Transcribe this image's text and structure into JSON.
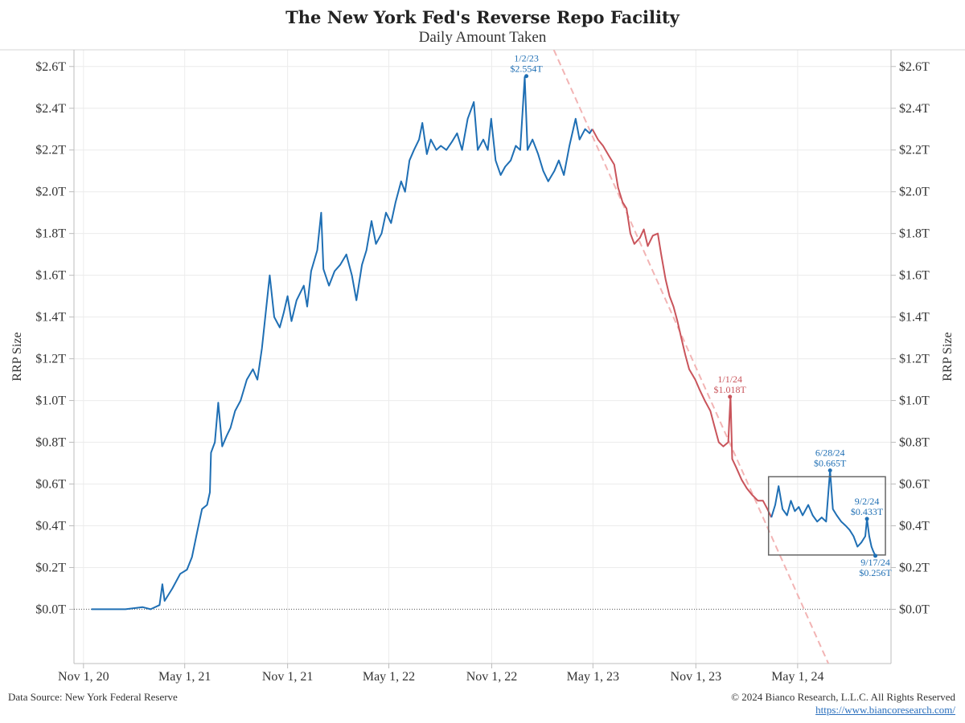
{
  "header": {
    "title": "The New York Fed's Reverse Repo Facility",
    "subtitle": "Daily Amount Taken"
  },
  "footer": {
    "source": "Data Source: New York Federal Reserve",
    "copyright": "© 2024 Bianco Research, L.L.C. All Rights Reserved",
    "link": "https://www.biancoresearch.com/"
  },
  "colors": {
    "primary_series": "#1f6fb4",
    "decline_series": "#c9545b",
    "trend_line": "#f2b4b4",
    "box": "#666666",
    "grid": "#ececec"
  },
  "chart_data": {
    "type": "line",
    "ylabel": "RRP Size",
    "ylabel_right": "RRP Size",
    "ylim": [
      -0.26,
      2.68
    ],
    "xlim": [
      "2020-10-15",
      "2024-10-15"
    ],
    "y_ticks": [
      0.0,
      0.2,
      0.4,
      0.6,
      0.8,
      1.0,
      1.2,
      1.4,
      1.6,
      1.8,
      2.0,
      2.2,
      2.4,
      2.6
    ],
    "y_tick_labels": [
      "$0.0T",
      "$0.2T",
      "$0.4T",
      "$0.6T",
      "$0.8T",
      "$1.0T",
      "$1.2T",
      "$1.4T",
      "$1.6T",
      "$1.8T",
      "$2.0T",
      "$2.2T",
      "$2.4T",
      "$2.6T"
    ],
    "x_ticks": [
      "2020-11-01",
      "2021-05-01",
      "2021-11-01",
      "2022-05-01",
      "2022-11-01",
      "2023-05-01",
      "2023-11-01",
      "2024-05-01"
    ],
    "x_tick_labels": [
      "Nov 1, 20",
      "May 1, 21",
      "Nov 1, 21",
      "May 1, 22",
      "Nov 1, 22",
      "May 1, 23",
      "Nov 1, 23",
      "May 1, 24"
    ],
    "grid": true,
    "zero_line": "dotted",
    "series": [
      {
        "color": "#1f6fb4",
        "points": [
          [
            "2020-11-15",
            0.0
          ],
          [
            "2020-12-15",
            0.0
          ],
          [
            "2021-01-15",
            0.0
          ],
          [
            "2021-02-15",
            0.01
          ],
          [
            "2021-03-01",
            0.0
          ],
          [
            "2021-03-17",
            0.02
          ],
          [
            "2021-03-22",
            0.12
          ],
          [
            "2021-03-26",
            0.04
          ],
          [
            "2021-04-09",
            0.1
          ],
          [
            "2021-04-23",
            0.17
          ],
          [
            "2021-05-05",
            0.19
          ],
          [
            "2021-05-14",
            0.25
          ],
          [
            "2021-05-24",
            0.38
          ],
          [
            "2021-06-01",
            0.48
          ],
          [
            "2021-06-10",
            0.5
          ],
          [
            "2021-06-15",
            0.56
          ],
          [
            "2021-06-17",
            0.75
          ],
          [
            "2021-06-24",
            0.8
          ],
          [
            "2021-06-30",
            0.99
          ],
          [
            "2021-07-07",
            0.78
          ],
          [
            "2021-07-15",
            0.83
          ],
          [
            "2021-07-22",
            0.87
          ],
          [
            "2021-07-30",
            0.95
          ],
          [
            "2021-08-09",
            1.0
          ],
          [
            "2021-08-20",
            1.1
          ],
          [
            "2021-08-31",
            1.15
          ],
          [
            "2021-09-08",
            1.1
          ],
          [
            "2021-09-16",
            1.25
          ],
          [
            "2021-09-30",
            1.6
          ],
          [
            "2021-10-08",
            1.4
          ],
          [
            "2021-10-18",
            1.35
          ],
          [
            "2021-10-25",
            1.42
          ],
          [
            "2021-11-01",
            1.5
          ],
          [
            "2021-11-08",
            1.38
          ],
          [
            "2021-11-17",
            1.48
          ],
          [
            "2021-11-30",
            1.55
          ],
          [
            "2021-12-06",
            1.45
          ],
          [
            "2021-12-13",
            1.62
          ],
          [
            "2021-12-24",
            1.72
          ],
          [
            "2021-12-31",
            1.9
          ],
          [
            "2022-01-04",
            1.63
          ],
          [
            "2022-01-14",
            1.55
          ],
          [
            "2022-01-24",
            1.62
          ],
          [
            "2022-02-03",
            1.65
          ],
          [
            "2022-02-14",
            1.7
          ],
          [
            "2022-02-24",
            1.6
          ],
          [
            "2022-03-04",
            1.48
          ],
          [
            "2022-03-14",
            1.65
          ],
          [
            "2022-03-22",
            1.72
          ],
          [
            "2022-03-31",
            1.86
          ],
          [
            "2022-04-08",
            1.75
          ],
          [
            "2022-04-18",
            1.8
          ],
          [
            "2022-04-26",
            1.9
          ],
          [
            "2022-05-05",
            1.85
          ],
          [
            "2022-05-13",
            1.95
          ],
          [
            "2022-05-23",
            2.05
          ],
          [
            "2022-05-30",
            2.0
          ],
          [
            "2022-06-07",
            2.15
          ],
          [
            "2022-06-15",
            2.2
          ],
          [
            "2022-06-24",
            2.25
          ],
          [
            "2022-06-30",
            2.33
          ],
          [
            "2022-07-08",
            2.18
          ],
          [
            "2022-07-15",
            2.25
          ],
          [
            "2022-07-25",
            2.2
          ],
          [
            "2022-08-02",
            2.22
          ],
          [
            "2022-08-12",
            2.2
          ],
          [
            "2022-08-22",
            2.24
          ],
          [
            "2022-08-31",
            2.28
          ],
          [
            "2022-09-09",
            2.2
          ],
          [
            "2022-09-19",
            2.35
          ],
          [
            "2022-09-30",
            2.43
          ],
          [
            "2022-10-07",
            2.2
          ],
          [
            "2022-10-17",
            2.25
          ],
          [
            "2022-10-25",
            2.2
          ],
          [
            "2022-10-31",
            2.35
          ],
          [
            "2022-11-08",
            2.15
          ],
          [
            "2022-11-17",
            2.08
          ],
          [
            "2022-11-25",
            2.12
          ],
          [
            "2022-12-05",
            2.15
          ],
          [
            "2022-12-14",
            2.22
          ],
          [
            "2022-12-22",
            2.2
          ],
          [
            "2022-12-30",
            2.55
          ],
          [
            "2023-01-04",
            2.2
          ],
          [
            "2023-01-13",
            2.25
          ],
          [
            "2023-01-23",
            2.18
          ],
          [
            "2023-02-01",
            2.1
          ],
          [
            "2023-02-10",
            2.05
          ],
          [
            "2023-02-21",
            2.1
          ],
          [
            "2023-03-01",
            2.15
          ],
          [
            "2023-03-10",
            2.08
          ],
          [
            "2023-03-20",
            2.22
          ],
          [
            "2023-03-31",
            2.35
          ],
          [
            "2023-04-07",
            2.25
          ],
          [
            "2023-04-17",
            2.3
          ],
          [
            "2023-04-25",
            2.28
          ],
          [
            "2023-04-30",
            2.3
          ]
        ]
      },
      {
        "color": "#c9545b",
        "points": [
          [
            "2023-04-30",
            2.3
          ],
          [
            "2023-05-10",
            2.25
          ],
          [
            "2023-05-19",
            2.22
          ],
          [
            "2023-05-30",
            2.17
          ],
          [
            "2023-06-08",
            2.13
          ],
          [
            "2023-06-15",
            2.02
          ],
          [
            "2023-06-23",
            1.95
          ],
          [
            "2023-06-30",
            1.92
          ],
          [
            "2023-07-07",
            1.8
          ],
          [
            "2023-07-14",
            1.75
          ],
          [
            "2023-07-24",
            1.78
          ],
          [
            "2023-07-31",
            1.82
          ],
          [
            "2023-08-07",
            1.74
          ],
          [
            "2023-08-16",
            1.79
          ],
          [
            "2023-08-25",
            1.8
          ],
          [
            "2023-08-31",
            1.7
          ],
          [
            "2023-09-08",
            1.58
          ],
          [
            "2023-09-15",
            1.5
          ],
          [
            "2023-09-22",
            1.45
          ],
          [
            "2023-09-29",
            1.38
          ],
          [
            "2023-10-06",
            1.3
          ],
          [
            "2023-10-13",
            1.22
          ],
          [
            "2023-10-20",
            1.15
          ],
          [
            "2023-10-31",
            1.1
          ],
          [
            "2023-11-08",
            1.05
          ],
          [
            "2023-11-17",
            1.0
          ],
          [
            "2023-11-27",
            0.95
          ],
          [
            "2023-12-04",
            0.88
          ],
          [
            "2023-12-12",
            0.8
          ],
          [
            "2023-12-20",
            0.78
          ],
          [
            "2023-12-29",
            0.8
          ],
          [
            "2024-01-02",
            1.02
          ],
          [
            "2024-01-05",
            0.72
          ],
          [
            "2024-01-12",
            0.68
          ],
          [
            "2024-01-22",
            0.62
          ],
          [
            "2024-01-31",
            0.58
          ],
          [
            "2024-02-09",
            0.55
          ],
          [
            "2024-02-20",
            0.52
          ],
          [
            "2024-02-29",
            0.52
          ],
          [
            "2024-03-08",
            0.48
          ],
          [
            "2024-03-15",
            0.44
          ]
        ]
      },
      {
        "color": "#1f6fb4",
        "points": [
          [
            "2024-03-15",
            0.44
          ],
          [
            "2024-03-22",
            0.5
          ],
          [
            "2024-03-28",
            0.59
          ],
          [
            "2024-04-04",
            0.48
          ],
          [
            "2024-04-12",
            0.45
          ],
          [
            "2024-04-19",
            0.52
          ],
          [
            "2024-04-26",
            0.47
          ],
          [
            "2024-05-03",
            0.49
          ],
          [
            "2024-05-10",
            0.45
          ],
          [
            "2024-05-20",
            0.5
          ],
          [
            "2024-05-28",
            0.45
          ],
          [
            "2024-06-05",
            0.42
          ],
          [
            "2024-06-13",
            0.44
          ],
          [
            "2024-06-21",
            0.42
          ],
          [
            "2024-06-28",
            0.665
          ],
          [
            "2024-07-03",
            0.48
          ],
          [
            "2024-07-10",
            0.45
          ],
          [
            "2024-07-18",
            0.42
          ],
          [
            "2024-07-26",
            0.4
          ],
          [
            "2024-08-02",
            0.38
          ],
          [
            "2024-08-09",
            0.35
          ],
          [
            "2024-08-16",
            0.3
          ],
          [
            "2024-08-23",
            0.32
          ],
          [
            "2024-08-30",
            0.35
          ],
          [
            "2024-09-02",
            0.433
          ],
          [
            "2024-09-06",
            0.35
          ],
          [
            "2024-09-10",
            0.3
          ],
          [
            "2024-09-13",
            0.28
          ],
          [
            "2024-09-17",
            0.256
          ]
        ]
      }
    ],
    "annotations": [
      {
        "date": "1/2/23",
        "value": "$2.554T",
        "x": "2023-01-02",
        "y": 2.554,
        "color": "#1f6fb4",
        "side": "above"
      },
      {
        "date": "1/1/24",
        "value": "$1.018T",
        "x": "2024-01-01",
        "y": 1.018,
        "color": "#c9545b",
        "side": "above"
      },
      {
        "date": "6/28/24",
        "value": "$0.665T",
        "x": "2024-06-28",
        "y": 0.665,
        "color": "#1f6fb4",
        "side": "above"
      },
      {
        "date": "9/2/24",
        "value": "$0.433T",
        "x": "2024-09-02",
        "y": 0.433,
        "color": "#1f6fb4",
        "side": "above"
      },
      {
        "date": "9/17/24",
        "value": "$0.256T",
        "x": "2024-09-17",
        "y": 0.256,
        "color": "#1f6fb4",
        "side": "below"
      }
    ],
    "trend_line": {
      "from": [
        "2023-02-20",
        2.68
      ],
      "to": [
        "2024-06-25",
        -0.26
      ],
      "style": "dashed"
    },
    "highlight_box": {
      "x0": "2024-03-10",
      "x1": "2024-10-05",
      "y0": 0.26,
      "y1": 0.635
    }
  }
}
